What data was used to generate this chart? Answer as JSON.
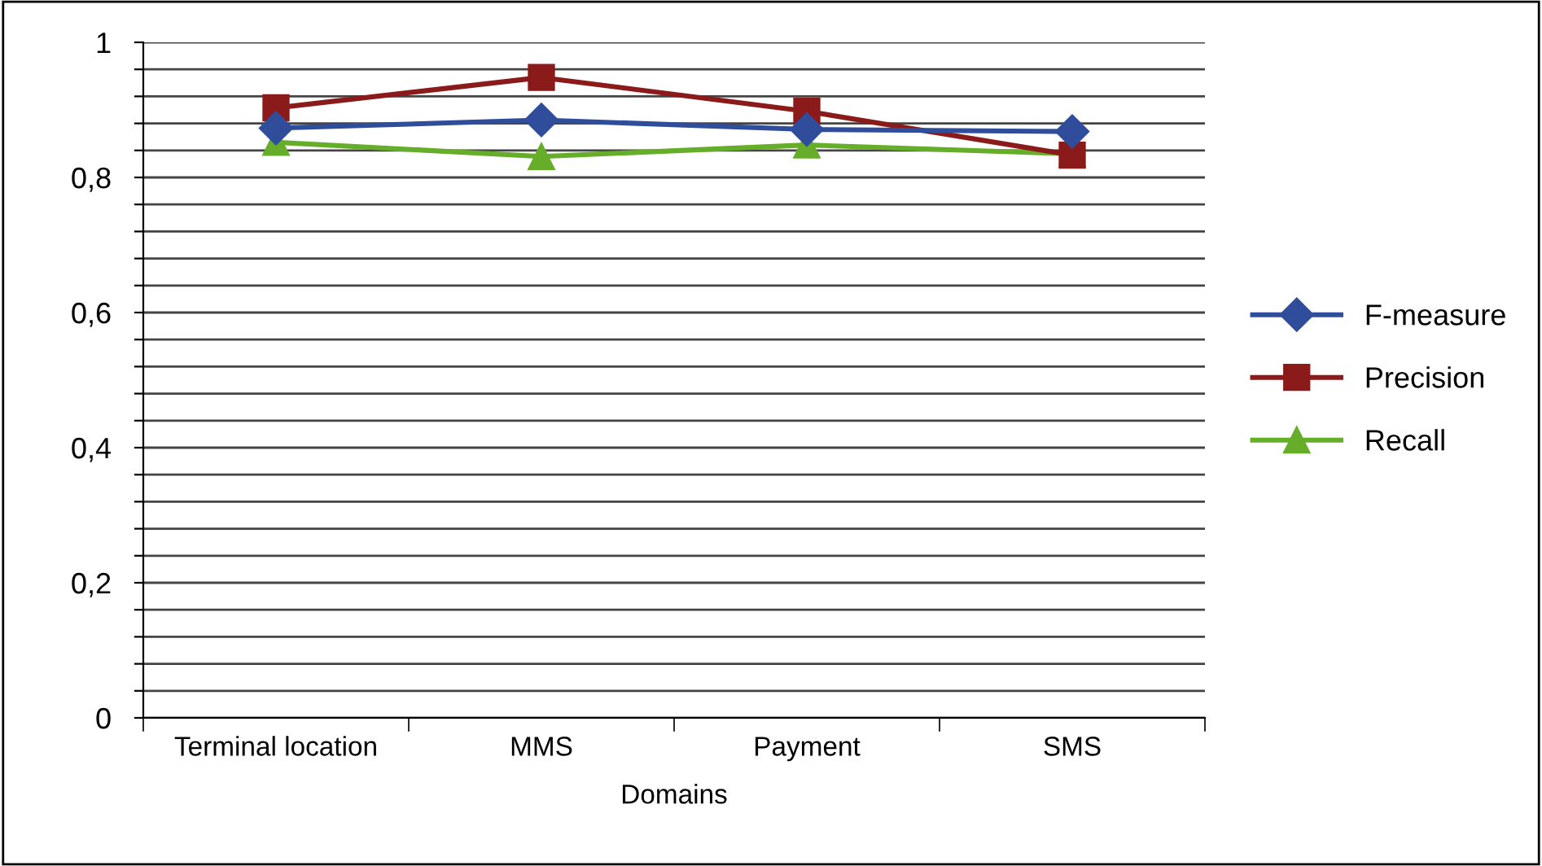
{
  "chart_data": {
    "type": "line",
    "xlabel": "Domains",
    "categories": [
      "Terminal location",
      "MMS",
      "Payment",
      "SMS"
    ],
    "series": [
      {
        "name": "F-measure",
        "color": "#2f4d9a",
        "marker": "diamond",
        "values": [
          0.873,
          0.885,
          0.871,
          0.868
        ]
      },
      {
        "name": "Precision",
        "color": "#8b1a1a",
        "marker": "square",
        "values": [
          0.903,
          0.948,
          0.898,
          0.833
        ]
      },
      {
        "name": "Recall",
        "color": "#66ad2a",
        "marker": "triangle",
        "values": [
          0.852,
          0.831,
          0.848,
          0.835
        ]
      }
    ],
    "ylim": [
      0,
      1
    ],
    "yticks": [
      {
        "value": 0,
        "label": "0"
      },
      {
        "value": 0.04,
        "label": null
      },
      {
        "value": 0.08,
        "label": null
      },
      {
        "value": 0.12,
        "label": null
      },
      {
        "value": 0.16,
        "label": null
      },
      {
        "value": 0.2,
        "label": "0,2"
      },
      {
        "value": 0.24,
        "label": null
      },
      {
        "value": 0.28,
        "label": null
      },
      {
        "value": 0.32,
        "label": null
      },
      {
        "value": 0.36,
        "label": null
      },
      {
        "value": 0.4,
        "label": "0,4"
      },
      {
        "value": 0.44,
        "label": null
      },
      {
        "value": 0.48,
        "label": null
      },
      {
        "value": 0.52,
        "label": null
      },
      {
        "value": 0.56,
        "label": null
      },
      {
        "value": 0.6,
        "label": "0,6"
      },
      {
        "value": 0.64,
        "label": null
      },
      {
        "value": 0.68,
        "label": null
      },
      {
        "value": 0.72,
        "label": null
      },
      {
        "value": 0.76,
        "label": null
      },
      {
        "value": 0.8,
        "label": "0,8"
      },
      {
        "value": 0.84,
        "label": null
      },
      {
        "value": 0.88,
        "label": null
      },
      {
        "value": 0.92,
        "label": null
      },
      {
        "value": 0.96,
        "label": null
      },
      {
        "value": 1,
        "label": "1"
      }
    ],
    "grid": "y",
    "legend": "right",
    "line_style": "solid"
  }
}
